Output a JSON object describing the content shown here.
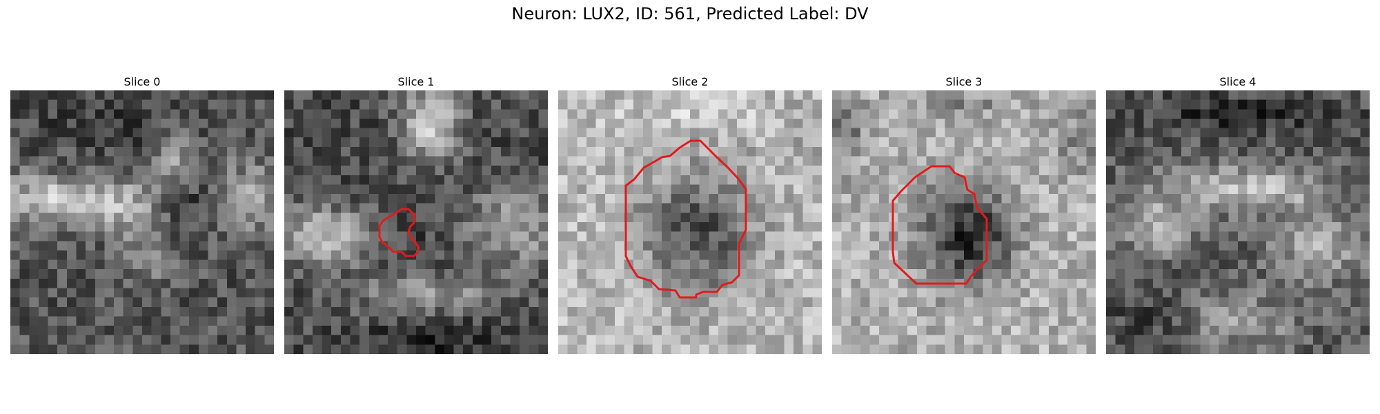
{
  "figure": {
    "title": "Neuron: LUX2, ID: 561, Predicted Label: DV"
  },
  "panels": [
    {
      "title": "Slice 0",
      "has_contour": false
    },
    {
      "title": "Slice 1",
      "has_contour": true
    },
    {
      "title": "Slice 2",
      "has_contour": true
    },
    {
      "title": "Slice 3",
      "has_contour": true
    },
    {
      "title": "Slice 4",
      "has_contour": false
    }
  ],
  "colors": {
    "contour": "#e31a1c",
    "colormap": "gray"
  }
}
